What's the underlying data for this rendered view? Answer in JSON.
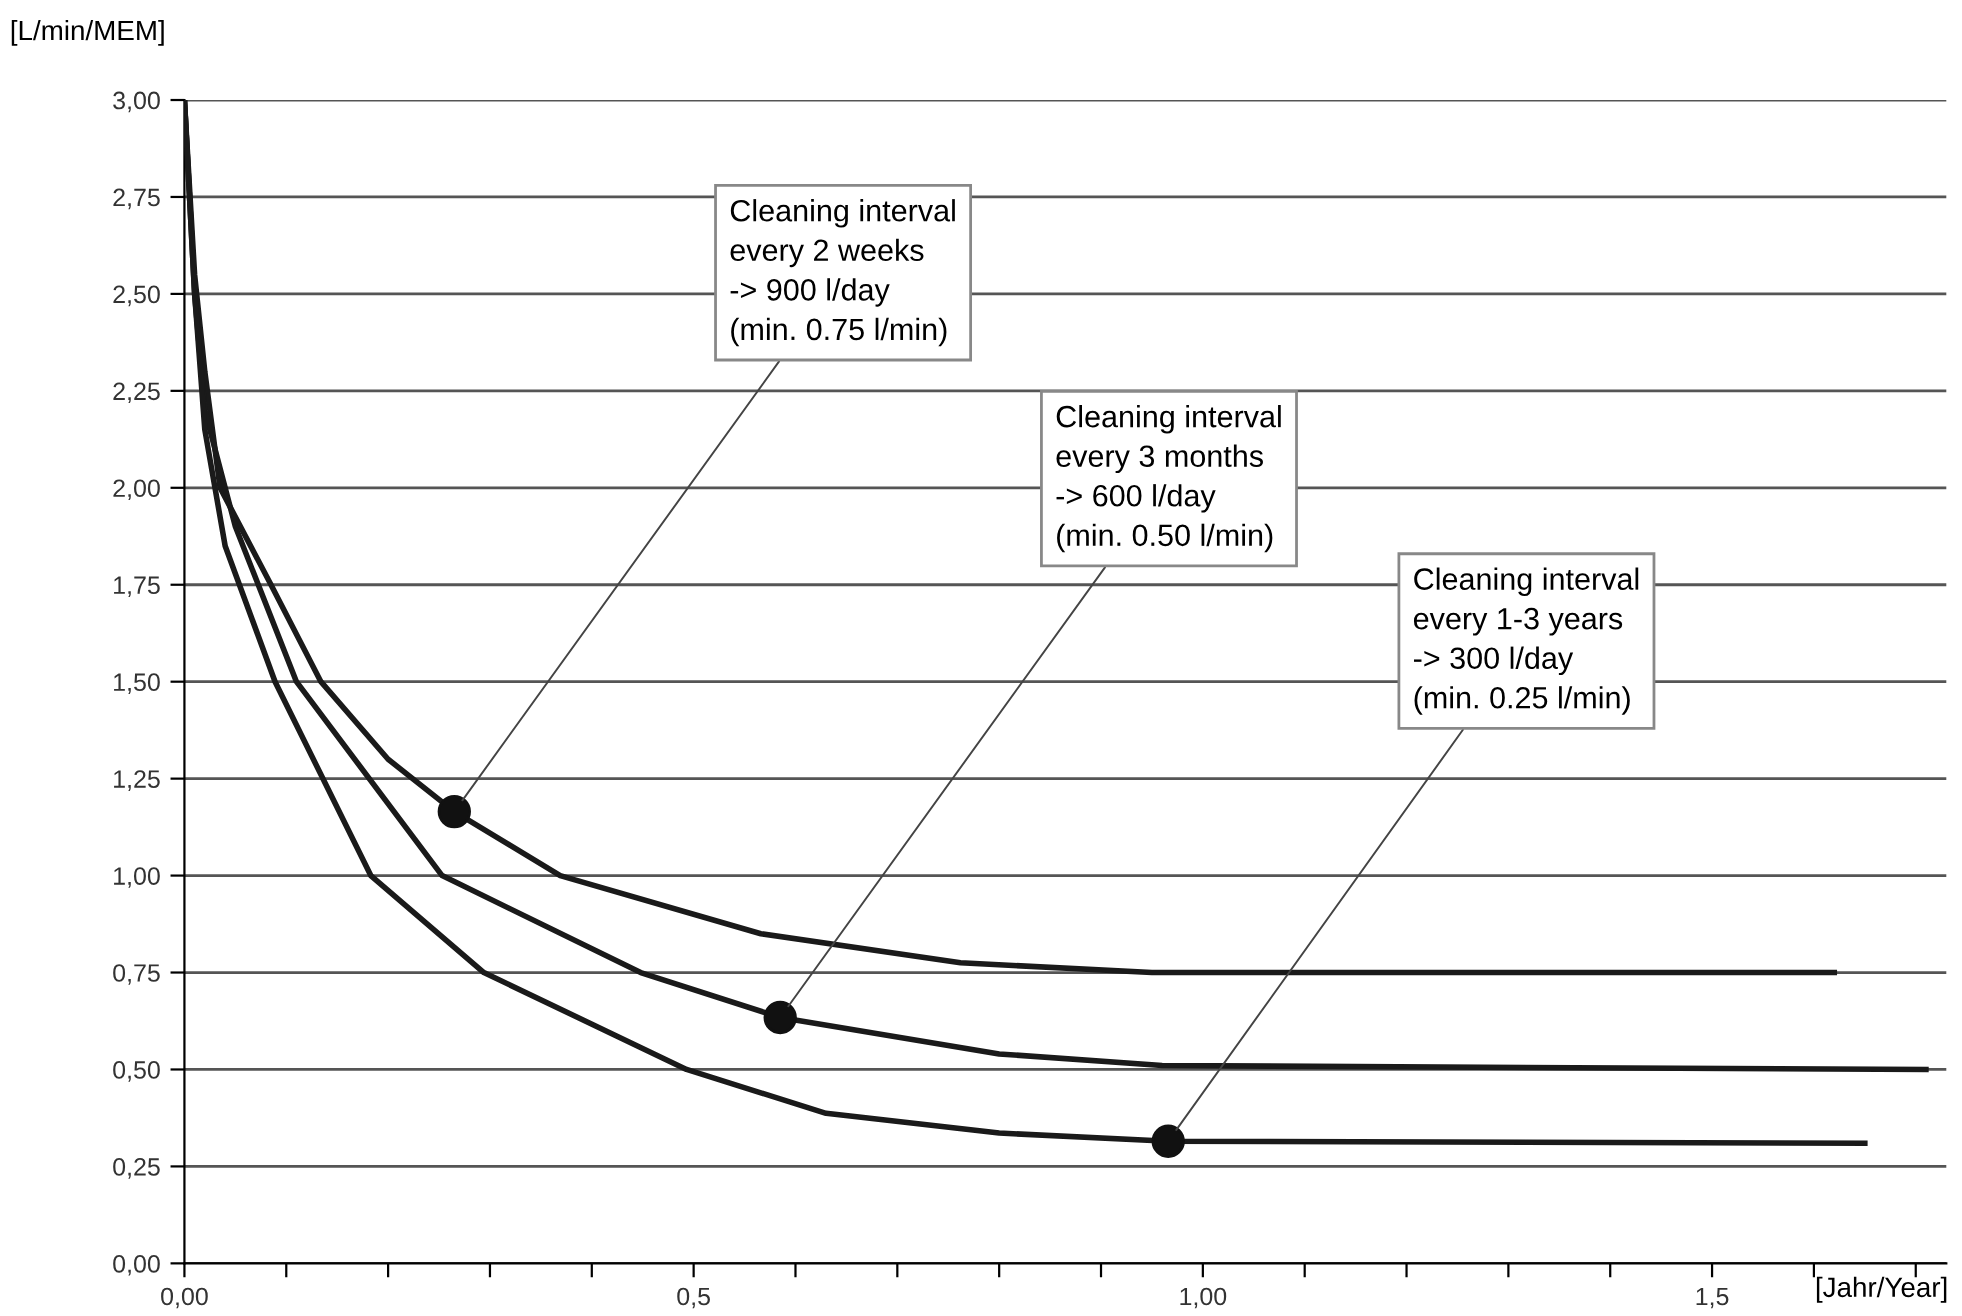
{
  "chart_data": {
    "type": "line",
    "ylabel": "[L/min/MEM]",
    "xlabel": "[Jahr/Year]",
    "series": [
      {
        "color": "#1a1a1a",
        "x": [
          0,
          0.01,
          0.02,
          0.035,
          0.085,
          0.134,
          0.2,
          0.265,
          0.369,
          0.566,
          0.762,
          0.95,
          1.62
        ],
        "values": [
          3.0,
          2.55,
          2.3,
          2.0,
          1.75,
          1.5,
          1.3,
          1.165,
          1.0,
          0.85,
          0.775,
          0.75,
          0.75
        ]
      },
      {
        "color": "#1a1a1a",
        "x": [
          0,
          0.01,
          0.02,
          0.05,
          0.11,
          0.253,
          0.448,
          0.585,
          0.8,
          0.96,
          1.71
        ],
        "values": [
          3.0,
          2.5,
          2.2,
          1.9,
          1.5,
          1.0,
          0.75,
          0.634,
          0.54,
          0.51,
          0.5
        ]
      },
      {
        "color": "#1a1a1a",
        "x": [
          0,
          0.01,
          0.02,
          0.04,
          0.089,
          0.183,
          0.294,
          0.493,
          0.63,
          0.8,
          0.966,
          1.65
        ],
        "values": [
          3.0,
          2.5,
          2.15,
          1.85,
          1.5,
          1.0,
          0.75,
          0.5,
          0.387,
          0.336,
          0.315,
          0.31
        ]
      }
    ],
    "xlim": [
      0,
      1.73
    ],
    "ylim": [
      0,
      3.0
    ],
    "xticks": [
      {
        "value": 0,
        "label": "0,00"
      },
      {
        "value": 0.1,
        "label": null
      },
      {
        "value": 0.2,
        "label": null
      },
      {
        "value": 0.3,
        "label": null
      },
      {
        "value": 0.4,
        "label": null
      },
      {
        "value": 0.5,
        "label": "0,5"
      },
      {
        "value": 0.6,
        "label": null
      },
      {
        "value": 0.7,
        "label": null
      },
      {
        "value": 0.8,
        "label": null
      },
      {
        "value": 0.9,
        "label": null
      },
      {
        "value": 1.0,
        "label": "1,00"
      },
      {
        "value": 1.1,
        "label": null
      },
      {
        "value": 1.2,
        "label": null
      },
      {
        "value": 1.3,
        "label": null
      },
      {
        "value": 1.4,
        "label": null
      },
      {
        "value": 1.5,
        "label": "1,5"
      },
      {
        "value": 1.6,
        "label": null
      },
      {
        "value": 1.7,
        "label": null
      }
    ],
    "yticks": [
      {
        "value": 0,
        "label": "0,00"
      },
      {
        "value": 0.25,
        "label": "0,25"
      },
      {
        "value": 0.5,
        "label": "0,50"
      },
      {
        "value": 0.75,
        "label": "0,75"
      },
      {
        "value": 1.0,
        "label": "1,00"
      },
      {
        "value": 1.25,
        "label": "1,25"
      },
      {
        "value": 1.5,
        "label": "1,50"
      },
      {
        "value": 1.75,
        "label": "1,75"
      },
      {
        "value": 2.0,
        "label": "2,00"
      },
      {
        "value": 2.25,
        "label": "2,25"
      },
      {
        "value": 2.5,
        "label": "2,50"
      },
      {
        "value": 2.75,
        "label": "2,75"
      },
      {
        "value": 3.0,
        "label": "3,00"
      }
    ],
    "grid": "y",
    "marker": "none",
    "line_style": "solid",
    "annotations": [
      {
        "text": "Cleaning interval\nevery 2 weeks\n-> 900 l/day\n(min. 0.75 l/min)",
        "x": 0.265,
        "y": 1.165
      },
      {
        "text": "Cleaning interval\nevery 3 months\n-> 600 l/day\n(min. 0.50 l/min)",
        "x": 0.585,
        "y": 0.634
      },
      {
        "text": "Cleaning interval\nevery 1-3 years\n-> 300 l/day\n(min. 0.25 l/min)",
        "x": 0.966,
        "y": 0.315
      }
    ]
  }
}
